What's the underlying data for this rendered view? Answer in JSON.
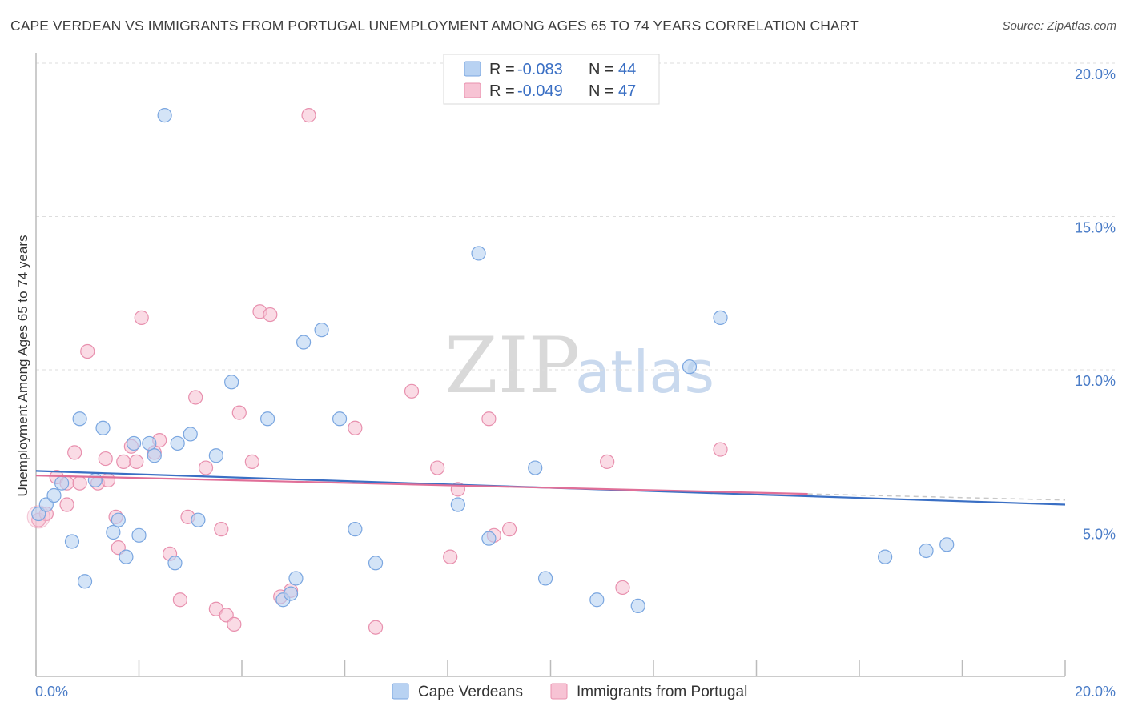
{
  "header": {
    "title": "CAPE VERDEAN VS IMMIGRANTS FROM PORTUGAL UNEMPLOYMENT AMONG AGES 65 TO 74 YEARS CORRELATION CHART",
    "source": "Source: ZipAtlas.com"
  },
  "watermark": {
    "zip": "ZIP",
    "atlas": "atlas"
  },
  "legend": {
    "r_label": "R =",
    "n_label": "N =",
    "series1": {
      "r": "-0.083",
      "n": "44"
    },
    "series2": {
      "r": "-0.049",
      "n": "47"
    }
  },
  "bottom_legend": {
    "series1": "Cape Verdeans",
    "series2": "Immigrants from Portugal"
  },
  "colors": {
    "series1_fill": "#b8d2f2",
    "series1_stroke": "#7aa6e0",
    "series1_line": "#3a6fc4",
    "series2_fill": "#f7c3d4",
    "series2_stroke": "#e890ae",
    "series2_line": "#e06f98",
    "grid": "#dddddd",
    "axis": "#bbbbbb"
  },
  "chart_data": {
    "type": "scatter",
    "title": "CAPE VERDEAN VS IMMIGRANTS FROM PORTUGAL UNEMPLOYMENT AMONG AGES 65 TO 74 YEARS CORRELATION CHART",
    "xlabel": "",
    "ylabel": "Unemployment Among Ages 65 to 74 years",
    "xlim": [
      0,
      20
    ],
    "ylim": [
      0,
      20.5
    ],
    "x_tick_labels": [
      "0.0%",
      "20.0%"
    ],
    "y_ticks": [
      5,
      10,
      15,
      20
    ],
    "y_tick_labels": [
      "5.0%",
      "10.0%",
      "15.0%",
      "20.0%"
    ],
    "grid": true,
    "series": [
      {
        "name": "Cape Verdeans",
        "r": -0.083,
        "n": 44,
        "trend": [
          [
            0,
            6.7
          ],
          [
            20,
            5.6
          ]
        ],
        "points": [
          [
            0.05,
            5.3
          ],
          [
            0.2,
            5.6
          ],
          [
            0.35,
            5.9
          ],
          [
            0.5,
            6.3
          ],
          [
            0.7,
            4.4
          ],
          [
            0.85,
            8.4
          ],
          [
            0.95,
            3.1
          ],
          [
            1.15,
            6.4
          ],
          [
            1.3,
            8.1
          ],
          [
            1.5,
            4.7
          ],
          [
            1.6,
            5.1
          ],
          [
            1.75,
            3.9
          ],
          [
            1.9,
            7.6
          ],
          [
            2.0,
            4.6
          ],
          [
            2.2,
            7.6
          ],
          [
            2.3,
            7.2
          ],
          [
            2.5,
            18.3
          ],
          [
            2.7,
            3.7
          ],
          [
            2.75,
            7.6
          ],
          [
            3.0,
            7.9
          ],
          [
            3.15,
            5.1
          ],
          [
            3.5,
            7.2
          ],
          [
            3.8,
            9.6
          ],
          [
            4.5,
            8.4
          ],
          [
            4.8,
            2.5
          ],
          [
            4.95,
            2.7
          ],
          [
            5.05,
            3.2
          ],
          [
            5.2,
            10.9
          ],
          [
            5.55,
            11.3
          ],
          [
            5.9,
            8.4
          ],
          [
            6.2,
            4.8
          ],
          [
            6.6,
            3.7
          ],
          [
            8.2,
            5.6
          ],
          [
            8.6,
            13.8
          ],
          [
            8.8,
            4.5
          ],
          [
            9.7,
            6.8
          ],
          [
            9.9,
            3.2
          ],
          [
            10.9,
            2.5
          ],
          [
            11.7,
            2.3
          ],
          [
            12.7,
            10.1
          ],
          [
            13.3,
            11.7
          ],
          [
            16.5,
            3.9
          ],
          [
            17.3,
            4.1
          ],
          [
            17.7,
            4.3
          ]
        ]
      },
      {
        "name": "Immigrants from Portugal",
        "r": -0.049,
        "n": 47,
        "trend": [
          [
            0,
            6.55
          ],
          [
            15,
            5.95
          ]
        ],
        "points": [
          [
            0.05,
            5.1
          ],
          [
            0.2,
            5.3
          ],
          [
            0.4,
            6.5
          ],
          [
            0.6,
            6.3
          ],
          [
            0.6,
            5.6
          ],
          [
            0.75,
            7.3
          ],
          [
            0.85,
            6.3
          ],
          [
            1.0,
            10.6
          ],
          [
            1.2,
            6.3
          ],
          [
            1.35,
            7.1
          ],
          [
            1.4,
            6.4
          ],
          [
            1.55,
            5.2
          ],
          [
            1.6,
            4.2
          ],
          [
            1.7,
            7.0
          ],
          [
            1.85,
            7.5
          ],
          [
            1.95,
            7.0
          ],
          [
            2.05,
            11.7
          ],
          [
            2.3,
            7.3
          ],
          [
            2.4,
            7.7
          ],
          [
            2.6,
            4.0
          ],
          [
            2.8,
            2.5
          ],
          [
            2.95,
            5.2
          ],
          [
            3.1,
            9.1
          ],
          [
            3.3,
            6.8
          ],
          [
            3.5,
            2.2
          ],
          [
            3.6,
            4.8
          ],
          [
            3.7,
            2.0
          ],
          [
            3.85,
            1.7
          ],
          [
            3.95,
            8.6
          ],
          [
            4.2,
            7.0
          ],
          [
            4.35,
            11.9
          ],
          [
            4.55,
            11.8
          ],
          [
            4.75,
            2.6
          ],
          [
            4.95,
            2.8
          ],
          [
            5.3,
            18.3
          ],
          [
            6.2,
            8.1
          ],
          [
            6.6,
            1.6
          ],
          [
            7.3,
            9.3
          ],
          [
            7.8,
            6.8
          ],
          [
            8.05,
            3.9
          ],
          [
            8.2,
            6.1
          ],
          [
            8.8,
            8.4
          ],
          [
            8.9,
            4.6
          ],
          [
            9.2,
            4.8
          ],
          [
            11.1,
            7.0
          ],
          [
            11.4,
            2.9
          ],
          [
            13.3,
            7.4
          ]
        ]
      }
    ]
  }
}
